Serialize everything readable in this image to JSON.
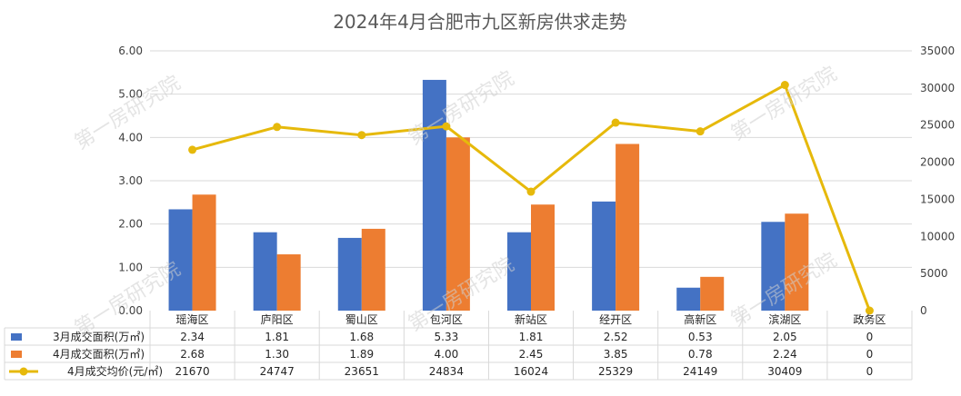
{
  "chart_data": {
    "type": "bar",
    "title": "2024年4月合肥市九区新房供求走势",
    "categories": [
      "瑶海区",
      "庐阳区",
      "蜀山区",
      "包河区",
      "新站区",
      "经开区",
      "高新区",
      "滨湖区",
      "政务区"
    ],
    "series": [
      {
        "name": "3月成交面积(万㎡)",
        "type": "bar",
        "axis": "left",
        "color": "#4472C4",
        "values": [
          2.34,
          1.81,
          1.68,
          5.33,
          1.81,
          2.52,
          0.53,
          2.05,
          0
        ],
        "labels": [
          "2.34",
          "1.81",
          "1.68",
          "5.33",
          "1.81",
          "2.52",
          "0.53",
          "2.05",
          "0"
        ]
      },
      {
        "name": "4月成交面积(万㎡)",
        "type": "bar",
        "axis": "left",
        "color": "#ED7D31",
        "values": [
          2.68,
          1.3,
          1.89,
          4.0,
          2.45,
          3.85,
          0.78,
          2.24,
          0
        ],
        "labels": [
          "2.68",
          "1.30",
          "1.89",
          "4.00",
          "2.45",
          "3.85",
          "0.78",
          "2.24",
          "0"
        ]
      },
      {
        "name": "4月成交均价(元/㎡)",
        "type": "line",
        "axis": "right",
        "color": "#E6B90B",
        "values": [
          21670,
          24747,
          23651,
          24834,
          16024,
          25329,
          24149,
          30409,
          0
        ],
        "labels": [
          "21670",
          "24747",
          "23651",
          "24834",
          "16024",
          "25329",
          "24149",
          "30409",
          "0"
        ]
      }
    ],
    "y_left": {
      "ylim": [
        0,
        6
      ],
      "ticks": [
        "0.00",
        "1.00",
        "2.00",
        "3.00",
        "4.00",
        "5.00",
        "6.00"
      ]
    },
    "y_right": {
      "ylim": [
        0,
        35000
      ],
      "ticks": [
        "0",
        "5000",
        "10000",
        "15000",
        "20000",
        "25000",
        "30000",
        "35000"
      ]
    },
    "grid": true,
    "legend": "data-table"
  },
  "watermark": "第一房研究院"
}
